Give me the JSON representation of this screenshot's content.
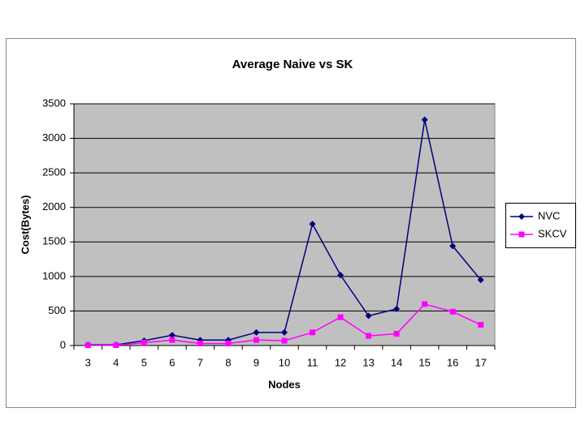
{
  "chart_data": {
    "type": "line",
    "title": "Average Naive vs SK",
    "x_label": "Nodes",
    "y_label": "Cost(Bytes)",
    "categories": [
      3,
      4,
      5,
      6,
      7,
      8,
      9,
      10,
      11,
      12,
      13,
      14,
      15,
      16,
      17
    ],
    "series": [
      {
        "name": "NVC",
        "color": "#000080",
        "marker": "diamond",
        "values": [
          10,
          10,
          70,
          150,
          80,
          80,
          190,
          190,
          1760,
          1020,
          430,
          530,
          3270,
          1440,
          950
        ]
      },
      {
        "name": "SKCV",
        "color": "#ff00ff",
        "marker": "square",
        "values": [
          5,
          5,
          40,
          80,
          30,
          30,
          80,
          70,
          190,
          410,
          140,
          170,
          600,
          490,
          300
        ]
      }
    ],
    "ylim": [
      0,
      3500
    ],
    "yticks": [
      0,
      500,
      1000,
      1500,
      2000,
      2500,
      3000,
      3500
    ],
    "grid": true,
    "legend": "right"
  }
}
